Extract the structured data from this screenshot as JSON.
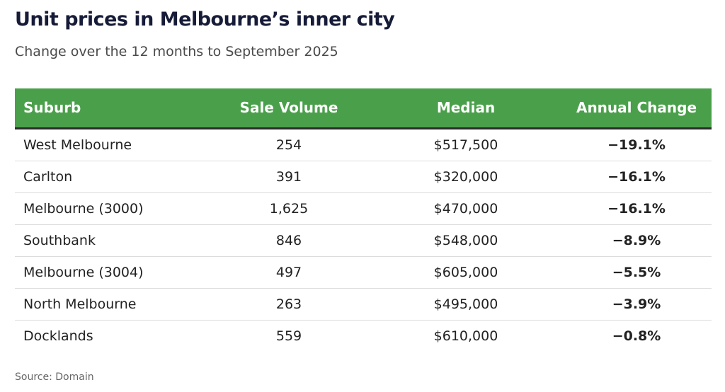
{
  "title": "Unit prices in Melbourne’s inner city",
  "subtitle": "Change over the 12 months to September 2025",
  "table": {
    "headers": [
      "Suburb",
      "Sale Volume",
      "Median",
      "Annual Change"
    ],
    "rows": [
      [
        "West Melbourne",
        "254",
        "$517,500",
        "−19.1%"
      ],
      [
        "Carlton",
        "391",
        "$320,000",
        "−16.1%"
      ],
      [
        "Melbourne (3000)",
        "1,625",
        "$470,000",
        "−16.1%"
      ],
      [
        "Southbank",
        "846",
        "$548,000",
        "−8.9%"
      ],
      [
        "Melbourne (3004)",
        "497",
        "$605,000",
        "−5.5%"
      ],
      [
        "North Melbourne",
        "263",
        "$495,000",
        "−3.9%"
      ],
      [
        "Docklands",
        "559",
        "$610,000",
        "−0.8%"
      ]
    ]
  },
  "source": "Source: Domain"
}
